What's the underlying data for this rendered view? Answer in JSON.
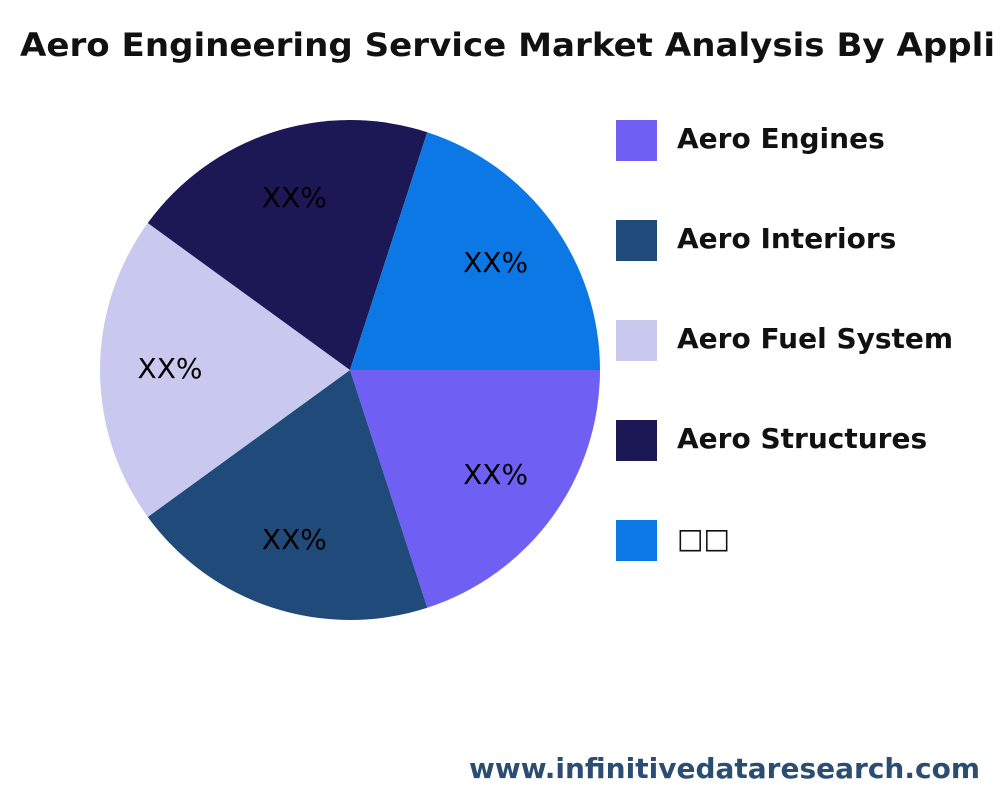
{
  "chart_data": {
    "type": "pie",
    "title": "Aero Engineering Service Market Analysis By Appli",
    "categories": [
      "Aero Engines",
      "Aero Interiors",
      "Aero Fuel System",
      "Aero Structures",
      "□□"
    ],
    "values": [
      20,
      20,
      20,
      20,
      20
    ],
    "value_labels": [
      "XX%",
      "XX%",
      "XX%",
      "XX%",
      "XX%"
    ],
    "colors": [
      "#6f5ff2",
      "#1f4a79",
      "#c9c9f0",
      "#1c1755",
      "#0b78e5"
    ],
    "legend": "right"
  },
  "footer": "www.infinitivedataresearch.com"
}
